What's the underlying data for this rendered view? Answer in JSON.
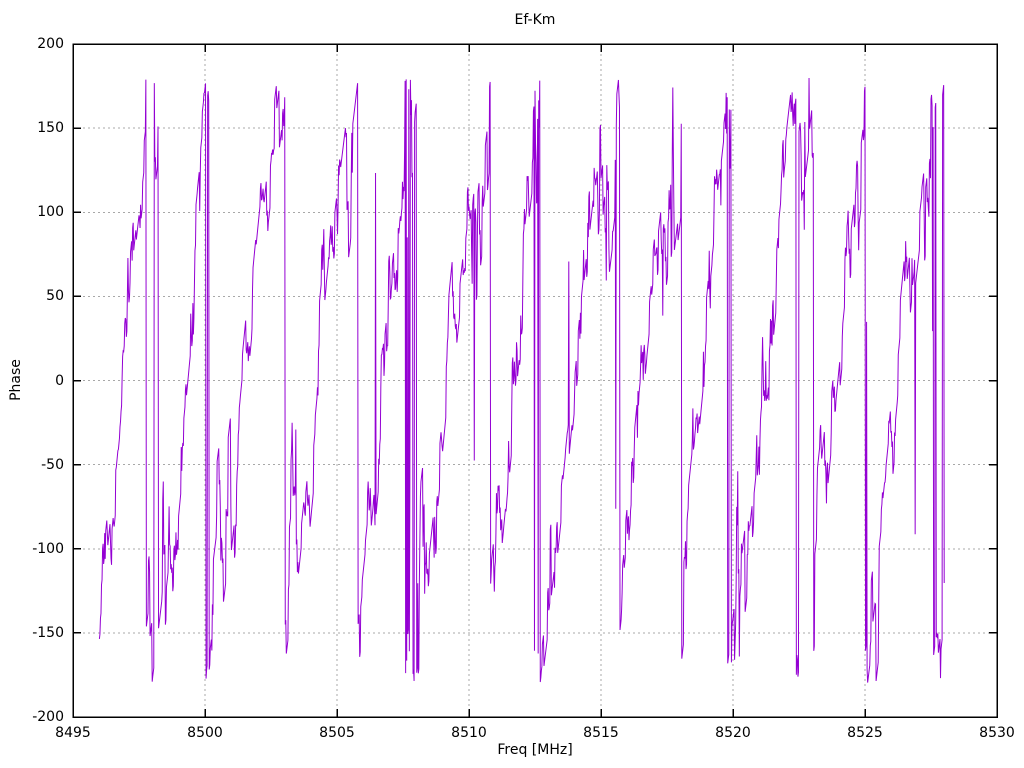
{
  "chart_data": {
    "type": "line",
    "title": "Ef-Km",
    "xlabel": "Freq [MHz]",
    "ylabel": "Phase",
    "xlim": [
      8495,
      8530
    ],
    "ylim": [
      -200,
      200
    ],
    "x_ticks": [
      8495,
      8500,
      8505,
      8510,
      8515,
      8520,
      8525,
      8530
    ],
    "y_ticks": [
      -200,
      -150,
      -100,
      -50,
      0,
      50,
      100,
      150,
      200
    ],
    "grid": "dotted",
    "grid_color": "#a8a8a8",
    "border_color": "#000000",
    "legend": "none",
    "series": [
      {
        "name": "Ef-Km",
        "color": "#9400d3",
        "description": "Phase response wrapped to ±180 deg: repeating noisy sawtooth ramps rising from -180 to +180, with dense wrap-around vertical-line clusters at ramp bottoms/tops and occasional isolated full-height wrap spikes",
        "data_range_mhz": [
          8496.0,
          8528.0
        ],
        "phase_wrap_limits_deg": [
          -180,
          180
        ],
        "ramp_period_mhz": 2.455,
        "wrap_frequencies_mhz": [
          8497.9,
          8500.3,
          8502.8,
          8505.3,
          8507.8,
          8510.3,
          8512.8,
          8515.2,
          8517.7,
          8520.1,
          8522.6,
          8525.0,
          8527.4
        ]
      }
    ],
    "generator": {
      "seed": 1337,
      "f_start": 8496.0,
      "f_end": 8528.0,
      "step": 0.02,
      "f_anchor": 8495.55,
      "period_mhz": 2.455,
      "shape_amp": 15,
      "noise_update_prob": 0.45,
      "noise_step": 12,
      "noise_keep": 0.88,
      "noise_clamp": 60,
      "bottom_burst_threshold": -110,
      "bottom_burst_amp": 2.2,
      "top_burst_threshold": 140,
      "top_burst_amp": 1.7,
      "spike_prob": 0.006,
      "spike_min": 120,
      "spike_extra": 180
    }
  }
}
